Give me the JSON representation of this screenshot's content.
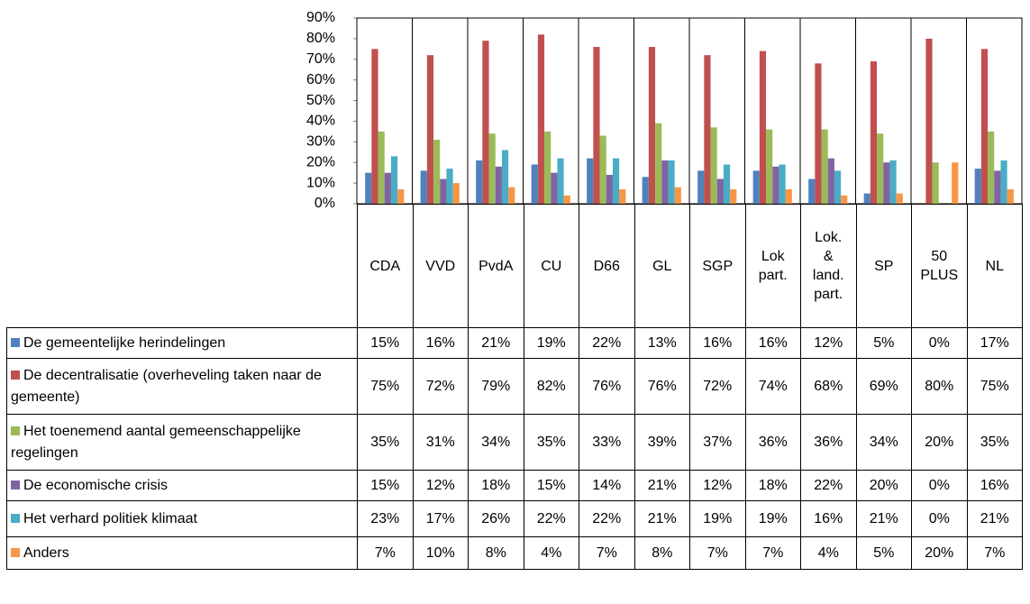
{
  "chart_data": {
    "type": "bar",
    "categories": [
      "CDA",
      "VVD",
      "PvdA",
      "CU",
      "D66",
      "GL",
      "SGP",
      "Lok part.",
      "Lok. & land. part.",
      "SP",
      "50 PLUS",
      "NL"
    ],
    "series": [
      {
        "name": "De gemeentelijke herindelingen",
        "color": "#4f81bd",
        "values": [
          15,
          16,
          21,
          19,
          22,
          13,
          16,
          16,
          12,
          5,
          0,
          17
        ],
        "value_labels": [
          "15%",
          "16%",
          "21%",
          "19%",
          "22%",
          "13%",
          "16%",
          "16%",
          "12%",
          "5%",
          "0%",
          "17%"
        ]
      },
      {
        "name": "De decentralisatie (overheveling taken naar de gemeente)",
        "color": "#c0504d",
        "values": [
          75,
          72,
          79,
          82,
          76,
          76,
          72,
          74,
          68,
          69,
          80,
          75
        ],
        "value_labels": [
          "75%",
          "72%",
          "79%",
          "82%",
          "76%",
          "76%",
          "72%",
          "74%",
          "68%",
          "69%",
          "80%",
          "75%"
        ]
      },
      {
        "name": "Het toenemend aantal gemeenschappelijke regelingen",
        "color": "#9bbb59",
        "values": [
          35,
          31,
          34,
          35,
          33,
          39,
          37,
          36,
          36,
          34,
          20,
          35
        ],
        "value_labels": [
          "35%",
          "31%",
          "34%",
          "35%",
          "33%",
          "39%",
          "37%",
          "36%",
          "36%",
          "34%",
          "20%",
          "35%"
        ]
      },
      {
        "name": "De economische crisis",
        "color": "#8064a2",
        "values": [
          15,
          12,
          18,
          15,
          14,
          21,
          12,
          18,
          22,
          20,
          0,
          16
        ],
        "value_labels": [
          "15%",
          "12%",
          "18%",
          "15%",
          "14%",
          "21%",
          "12%",
          "18%",
          "22%",
          "20%",
          "0%",
          "16%"
        ]
      },
      {
        "name": "Het verhard politiek klimaat",
        "color": "#4bacc6",
        "values": [
          23,
          17,
          26,
          22,
          22,
          21,
          19,
          19,
          16,
          21,
          0,
          21
        ],
        "value_labels": [
          "23%",
          "17%",
          "26%",
          "22%",
          "22%",
          "21%",
          "19%",
          "19%",
          "16%",
          "21%",
          "0%",
          "21%"
        ]
      },
      {
        "name": "Anders",
        "color": "#f79646",
        "values": [
          7,
          10,
          8,
          4,
          7,
          8,
          7,
          7,
          4,
          5,
          20,
          7
        ],
        "value_labels": [
          "7%",
          "10%",
          "8%",
          "4%",
          "7%",
          "8%",
          "7%",
          "7%",
          "4%",
          "5%",
          "20%",
          "7%"
        ]
      }
    ],
    "ylim": [
      0,
      90
    ],
    "yticks": [
      {
        "value": 0,
        "label": "0%"
      },
      {
        "value": 10,
        "label": "10%"
      },
      {
        "value": 20,
        "label": "20%"
      },
      {
        "value": 30,
        "label": "30%"
      },
      {
        "value": 40,
        "label": "40%"
      },
      {
        "value": 50,
        "label": "50%"
      },
      {
        "value": 60,
        "label": "60%"
      },
      {
        "value": 70,
        "label": "70%"
      },
      {
        "value": 80,
        "label": "80%"
      },
      {
        "value": 90,
        "label": "90%"
      }
    ],
    "grid": false
  }
}
